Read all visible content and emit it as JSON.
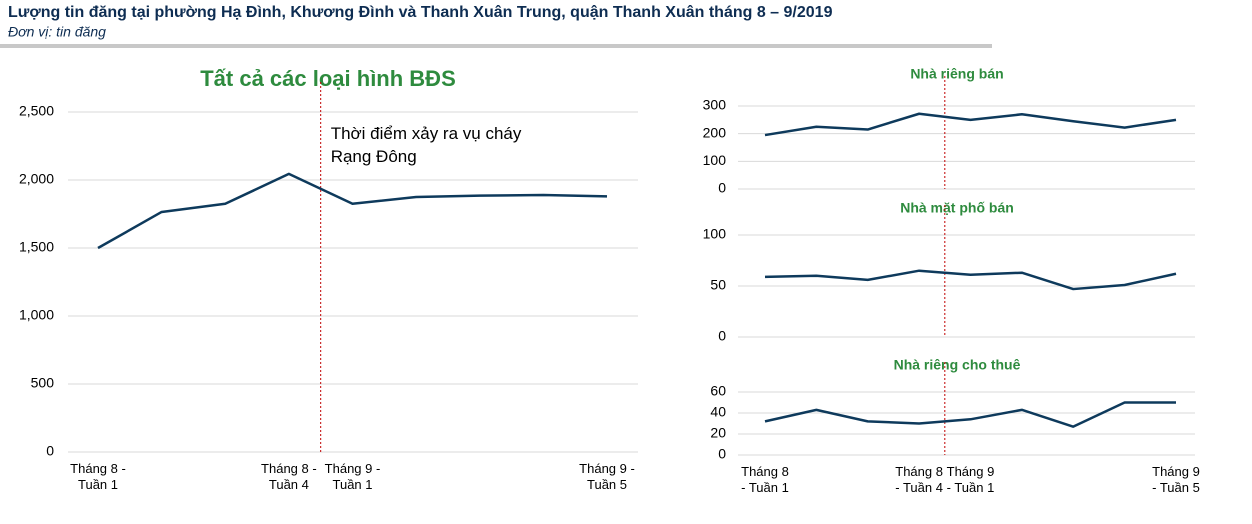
{
  "header": {
    "title": "Lượng tin đăng tại phường Hạ Đình, Khương Đình và Thanh Xuân Trung, quận Thanh Xuân tháng 8 – 9/2019",
    "subtitle": "Đơn vị: tin đăng"
  },
  "chart_data": [
    {
      "type": "line",
      "title": "Tất cả các loại hình BĐS",
      "categories": [
        "Tháng 8 - Tuần 1",
        null,
        null,
        "Tháng 8 - Tuần 4",
        "Tháng 9 - Tuần 1",
        null,
        null,
        null,
        "Tháng 9 - Tuần 5"
      ],
      "values": [
        1500,
        1765,
        1825,
        2045,
        1825,
        1875,
        1885,
        1890,
        1880
      ],
      "color": "#0e3a5c",
      "ylim": [
        0,
        2500
      ],
      "yticks": [
        0,
        {
          "value": 500,
          "label": "500"
        },
        {
          "value": 1000,
          "label": "1,000"
        },
        {
          "value": 1500,
          "label": "1,500"
        },
        {
          "value": 2000,
          "label": "2,000"
        },
        {
          "value": 2500,
          "label": "2,500"
        }
      ],
      "grid": true,
      "annotation": "Thời điểm xảy ra vụ cháy Rạng Đông"
    },
    {
      "type": "line",
      "title": "Nhà riêng bán",
      "values": [
        195,
        225,
        215,
        272,
        250,
        270,
        245,
        222,
        250
      ],
      "color": "#0e3a5c",
      "ylim": [
        0,
        300
      ],
      "yticks": [
        0,
        100,
        200,
        300
      ],
      "grid": true
    },
    {
      "type": "line",
      "title": "Nhà mặt phố bán",
      "values": [
        59,
        60,
        56,
        65,
        61,
        63,
        47,
        51,
        62
      ],
      "color": "#0e3a5c",
      "ylim": [
        0,
        100
      ],
      "yticks": [
        0,
        50,
        100
      ],
      "grid": true
    },
    {
      "type": "line",
      "title": "Nhà riêng cho thuê",
      "categories": [
        "Tháng 8 - Tuần 1",
        null,
        null,
        "Tháng 8 - Tuần 4",
        "Tháng 9 - Tuần 1",
        null,
        null,
        null,
        "Tháng 9 - Tuần 5"
      ],
      "values": [
        32,
        43,
        32,
        30,
        34,
        43,
        27,
        50,
        50
      ],
      "color": "#0e3a5c",
      "ylim": [
        0,
        60
      ],
      "yticks": [
        0,
        20,
        40,
        60
      ],
      "grid": true
    }
  ]
}
